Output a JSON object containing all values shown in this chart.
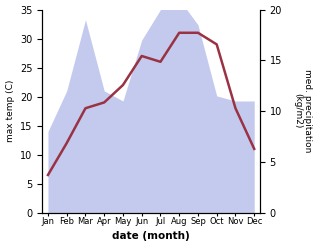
{
  "months": [
    "Jan",
    "Feb",
    "Mar",
    "Apr",
    "May",
    "Jun",
    "Jul",
    "Aug",
    "Sep",
    "Oct",
    "Nov",
    "Dec"
  ],
  "max_temp": [
    6.5,
    12.0,
    18.0,
    19.0,
    22.0,
    27.0,
    26.0,
    31.0,
    31.0,
    29.0,
    18.0,
    11.0
  ],
  "precipitation": [
    8.0,
    12.0,
    19.0,
    12.0,
    11.0,
    17.0,
    20.0,
    21.0,
    18.5,
    11.5,
    11.0,
    11.0
  ],
  "temp_color": "#993344",
  "precip_color": "#aab4e8",
  "ylabel_left": "max temp (C)",
  "ylabel_right": "med. precipitation\n(kg/m2)",
  "xlabel": "date (month)",
  "ylim_left": [
    0,
    35
  ],
  "ylim_right": [
    0,
    20
  ],
  "yticks_left": [
    0,
    5,
    10,
    15,
    20,
    25,
    30,
    35
  ],
  "yticks_right": [
    0,
    5,
    10,
    15,
    20
  ],
  "bg_color": "#ffffff",
  "line_width": 1.8,
  "figsize": [
    3.18,
    2.47
  ],
  "dpi": 100
}
